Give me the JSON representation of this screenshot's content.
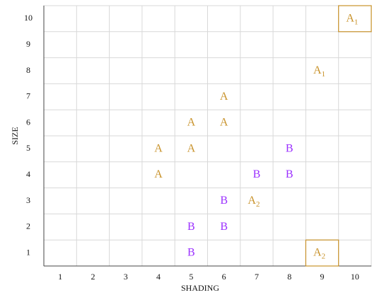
{
  "chart_data": {
    "type": "scatter",
    "x_label": "SHADING",
    "y_label": "SIZE",
    "xlim": [
      0.5,
      10.5
    ],
    "ylim": [
      0.5,
      10.5
    ],
    "xticks": [
      1,
      2,
      3,
      4,
      5,
      6,
      7,
      8,
      9,
      10
    ],
    "yticks": [
      1,
      2,
      3,
      4,
      5,
      6,
      7,
      8,
      9,
      10
    ],
    "grid": true,
    "series": [
      {
        "name": "A",
        "color": "#c8922a",
        "x": [
          4,
          5,
          4,
          5,
          6,
          6
        ],
        "values": [
          5,
          5,
          4,
          6,
          6,
          7
        ]
      },
      {
        "name": "A",
        "subscript": "1",
        "color": "#c8922a",
        "x": [
          9,
          10
        ],
        "values": [
          8,
          10
        ],
        "boxed": [
          false,
          true
        ]
      },
      {
        "name": "A",
        "subscript": "2",
        "color": "#c8922a",
        "x": [
          7,
          9
        ],
        "values": [
          3,
          1
        ],
        "boxed": [
          false,
          true
        ]
      },
      {
        "name": "B",
        "color": "#9b30ff",
        "x": [
          8,
          7,
          8,
          6,
          5,
          6,
          5
        ],
        "values": [
          5,
          4,
          4,
          3,
          2,
          2,
          1
        ]
      }
    ]
  }
}
